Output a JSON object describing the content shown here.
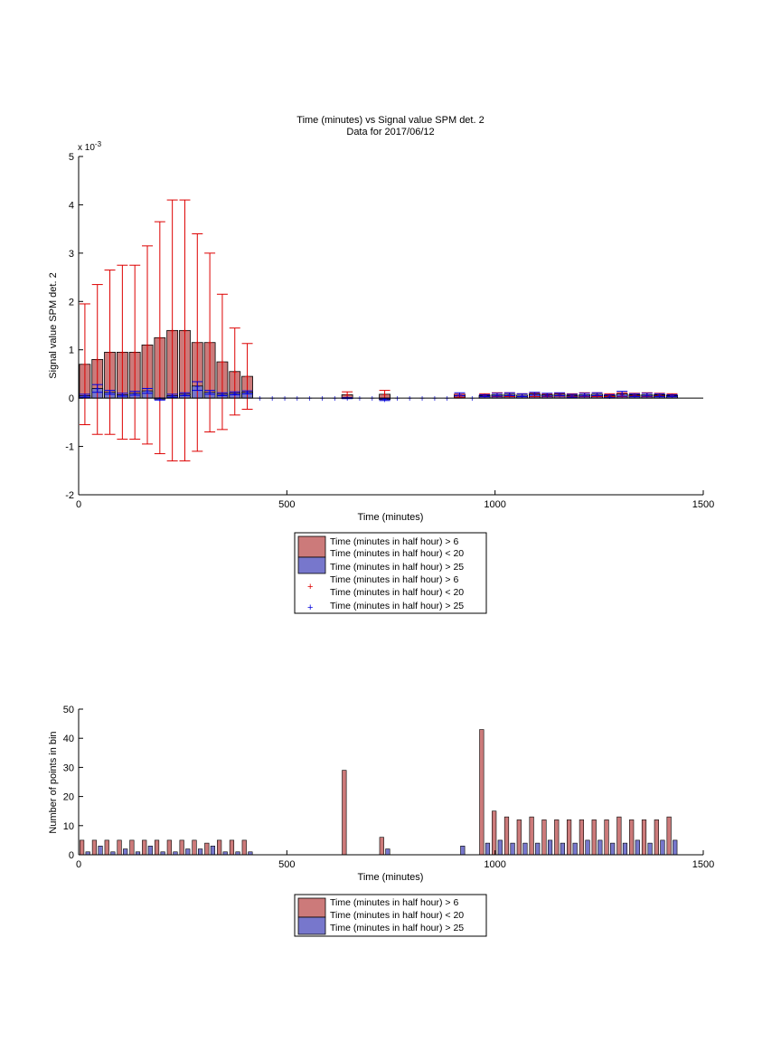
{
  "figure": {
    "title_line1": "Time (minutes) vs Signal value SPM det. 2",
    "title_line2": "Data for 2017/06/12"
  },
  "colors": {
    "red_bar": "#cc7a7a",
    "blue_bar": "#7777cc",
    "red_mark": "#dd0000",
    "blue_mark": "#0000dd",
    "axis": "#000000"
  },
  "chart_data": [
    {
      "type": "bar",
      "xlabel": "Time (minutes)",
      "ylabel": "Signal value SPM det. 2",
      "exponent_label": "x 10",
      "exponent_power": "-3",
      "xlim": [
        0,
        1500
      ],
      "ylim": [
        -2,
        5
      ],
      "xticks": [
        "0",
        "500",
        "1000",
        "1500"
      ],
      "yticks": [
        "-2",
        "-1",
        "0",
        "1",
        "2",
        "3",
        "4",
        "5"
      ],
      "legend": [
        "Time (minutes in half hour) > 6",
        "Time (minutes in half hour) < 20",
        "Time (minutes in half hour) > 25",
        "Time (minutes in half hour) > 6",
        "Time (minutes in half hour) < 20",
        "Time (minutes in half hour) > 25"
      ],
      "bars_red": {
        "x": [
          15,
          45,
          75,
          105,
          135,
          165,
          195,
          225,
          255,
          285,
          315,
          345,
          375,
          405,
          645,
          735,
          915,
          975,
          1005,
          1035,
          1065,
          1095,
          1125,
          1155,
          1185,
          1215,
          1245,
          1275,
          1305,
          1335,
          1365,
          1395,
          1425
        ],
        "values": [
          0.7,
          0.8,
          0.95,
          0.95,
          0.95,
          1.1,
          1.25,
          1.4,
          1.4,
          1.15,
          1.15,
          0.75,
          0.55,
          0.45,
          0.07,
          0.08,
          0.05,
          0.06,
          0.07,
          0.07,
          0.06,
          0.07,
          0.06,
          0.07,
          0.06,
          0.07,
          0.07,
          0.06,
          0.07,
          0.07,
          0.07,
          0.07,
          0.06
        ],
        "err": [
          1.25,
          1.55,
          1.7,
          1.8,
          1.8,
          2.05,
          2.4,
          2.7,
          2.7,
          2.25,
          1.85,
          1.4,
          0.9,
          0.68,
          0.06,
          0.08,
          0.03,
          0.03,
          0.04,
          0.04,
          0.03,
          0.04,
          0.03,
          0.03,
          0.03,
          0.04,
          0.04,
          0.03,
          0.04,
          0.03,
          0.04,
          0.03,
          0.03
        ]
      },
      "bars_blue": {
        "x": [
          15,
          45,
          75,
          105,
          135,
          165,
          195,
          225,
          255,
          285,
          315,
          345,
          375,
          405,
          645,
          735,
          915,
          975,
          1005,
          1035,
          1065,
          1095,
          1125,
          1155,
          1185,
          1215,
          1245,
          1275,
          1305,
          1335,
          1365,
          1395,
          1425
        ],
        "values": [
          0.05,
          0.2,
          0.12,
          0.07,
          0.1,
          0.15,
          -0.02,
          0.05,
          0.08,
          0.25,
          0.12,
          0.08,
          0.1,
          0.12,
          0.0,
          -0.03,
          0.08,
          0.05,
          0.07,
          0.08,
          0.06,
          0.09,
          0.07,
          0.08,
          0.05,
          0.07,
          0.08,
          0.04,
          0.09,
          0.06,
          0.07,
          0.06,
          0.05
        ],
        "err": [
          0.03,
          0.08,
          0.04,
          0.03,
          0.04,
          0.05,
          0.02,
          0.03,
          0.03,
          0.09,
          0.04,
          0.03,
          0.03,
          0.03,
          0.01,
          0.02,
          0.03,
          0.02,
          0.03,
          0.03,
          0.03,
          0.03,
          0.03,
          0.03,
          0.03,
          0.03,
          0.03,
          0.03,
          0.05,
          0.03,
          0.03,
          0.03,
          0.02
        ]
      },
      "markers_red_x": [
        15,
        45,
        75,
        105,
        135,
        165,
        195,
        225,
        255,
        285,
        315,
        345,
        375,
        405,
        645,
        735,
        915,
        975,
        1005,
        1035,
        1065,
        1095,
        1125,
        1155,
        1185,
        1215,
        1245,
        1275,
        1305,
        1335,
        1365,
        1395,
        1425
      ],
      "markers_blue_x": [
        15,
        45,
        75,
        105,
        135,
        165,
        195,
        225,
        255,
        285,
        315,
        345,
        375,
        405,
        435,
        465,
        495,
        525,
        555,
        585,
        615,
        645,
        675,
        705,
        735,
        765,
        795,
        825,
        855,
        885,
        915,
        945,
        975,
        1005,
        1035,
        1065,
        1095,
        1125,
        1155,
        1185,
        1215,
        1245,
        1275,
        1305,
        1335,
        1365,
        1395,
        1425
      ]
    },
    {
      "type": "bar",
      "xlabel": "Time (minutes)",
      "ylabel": "Number of points in bin",
      "xlim": [
        0,
        1500
      ],
      "ylim": [
        0,
        50
      ],
      "xticks": [
        "0",
        "500",
        "1000",
        "1500"
      ],
      "yticks": [
        "0",
        "10",
        "20",
        "30",
        "40",
        "50"
      ],
      "legend": [
        "Time (minutes in half hour) > 6",
        "Time (minutes in half hour) < 20",
        "Time (minutes in half hour) > 25"
      ],
      "series_red": {
        "x": [
          15,
          45,
          75,
          105,
          135,
          165,
          195,
          225,
          255,
          285,
          315,
          345,
          375,
          405,
          645,
          735,
          975,
          1005,
          1035,
          1065,
          1095,
          1125,
          1155,
          1185,
          1215,
          1245,
          1275,
          1305,
          1335,
          1365,
          1395,
          1425
        ],
        "values": [
          5,
          5,
          5,
          5,
          5,
          5,
          5,
          5,
          5,
          5,
          4,
          5,
          5,
          5,
          29,
          6,
          43,
          15,
          13,
          12,
          13,
          12,
          12,
          12,
          12,
          12,
          12,
          13,
          12,
          12,
          12,
          13
        ]
      },
      "series_blue": {
        "x": [
          15,
          45,
          75,
          105,
          135,
          165,
          195,
          225,
          255,
          285,
          315,
          345,
          375,
          405,
          735,
          915,
          975,
          1005,
          1035,
          1065,
          1095,
          1125,
          1155,
          1185,
          1215,
          1245,
          1275,
          1305,
          1335,
          1365,
          1395,
          1425
        ],
        "values": [
          1,
          3,
          1,
          2,
          1,
          3,
          1,
          1,
          2,
          2,
          3,
          1,
          1,
          1,
          2,
          3,
          4,
          5,
          4,
          4,
          4,
          5,
          4,
          4,
          5,
          5,
          4,
          4,
          5,
          4,
          5,
          5
        ]
      }
    }
  ]
}
